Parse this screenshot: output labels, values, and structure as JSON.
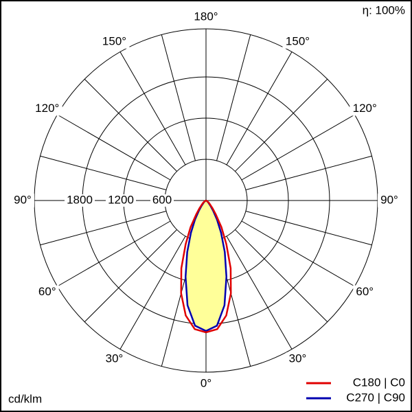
{
  "chart_data": {
    "type": "polar-intensity",
    "efficiency_label": "η: 100%",
    "unit_label": "cd/klm",
    "x": [
      0,
      5,
      10,
      15,
      20,
      25,
      30,
      35,
      40,
      50,
      60,
      70,
      80,
      90
    ],
    "series": [
      {
        "name": "C180 | C0",
        "color": "#e00000",
        "values": [
          1920,
          1880,
          1700,
          1400,
          1050,
          700,
          450,
          250,
          150,
          60,
          20,
          5,
          0,
          0
        ]
      },
      {
        "name": "C270 | C90",
        "color": "#0000b0",
        "values": [
          1900,
          1830,
          1550,
          1150,
          800,
          520,
          320,
          180,
          100,
          40,
          10,
          0,
          0,
          0
        ]
      }
    ],
    "fill_color": "#ffff99",
    "rlim": [
      0,
      2500
    ],
    "rticks": [
      600,
      1200,
      1800
    ],
    "angle_ticks": [
      {
        "value": 0,
        "label": "0°"
      },
      {
        "value": 30,
        "label": "30°"
      },
      {
        "value": 60,
        "label": "60°"
      },
      {
        "value": 90,
        "label": "90°"
      },
      {
        "value": 120,
        "label": "120°"
      },
      {
        "value": 150,
        "label": "150°"
      },
      {
        "value": 180,
        "label": "180°"
      }
    ],
    "grid_step": 15
  }
}
